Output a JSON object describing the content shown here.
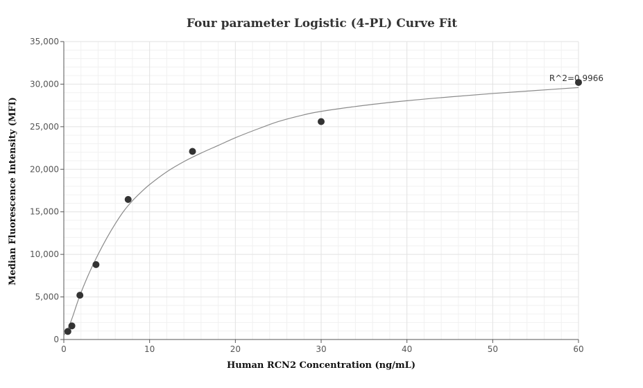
{
  "chart_data": {
    "type": "scatter",
    "title": "Four parameter Logistic (4-PL) Curve Fit",
    "xlabel": "Human RCN2 Concentration (ng/mL)",
    "ylabel": "Median Fluorescence Intensity (MFI)",
    "xlim": [
      0,
      60
    ],
    "ylim": [
      0,
      35000
    ],
    "x_ticks": [
      0,
      10,
      20,
      30,
      40,
      50,
      60
    ],
    "y_ticks": [
      0,
      5000,
      10000,
      15000,
      20000,
      25000,
      30000,
      35000
    ],
    "x_tick_labels": [
      "0",
      "10",
      "20",
      "30",
      "40",
      "50",
      "60"
    ],
    "y_tick_labels": [
      "0",
      "5,000",
      "10,000",
      "15,000",
      "20,000",
      "25,000",
      "30,000",
      "35,000"
    ],
    "grid": true,
    "points": {
      "x": [
        0.469,
        0.938,
        1.875,
        3.75,
        7.5,
        15,
        30,
        60
      ],
      "y": [
        950,
        1600,
        5200,
        8800,
        16450,
        22100,
        25600,
        30200
      ]
    },
    "fit_curve": {
      "model": "4PL",
      "x": [
        0,
        0.5,
        1,
        1.5,
        2,
        3,
        4,
        5,
        6,
        7,
        8,
        9,
        10,
        12,
        14,
        16,
        18,
        20,
        22,
        25,
        28,
        30,
        35,
        40,
        45,
        50,
        55,
        60
      ],
      "y": [
        500,
        1300,
        2600,
        4100,
        5500,
        7900,
        10000,
        11900,
        13600,
        15100,
        16300,
        17300,
        18200,
        19700,
        20900,
        21900,
        22800,
        23700,
        24500,
        25600,
        26400,
        26800,
        27500,
        28050,
        28500,
        28900,
        29250,
        29600
      ]
    },
    "annotations": [
      {
        "text": "R^2=0.9966"
      }
    ],
    "colors": {
      "marker": "#333333",
      "curve": "#8a8a8a"
    }
  }
}
